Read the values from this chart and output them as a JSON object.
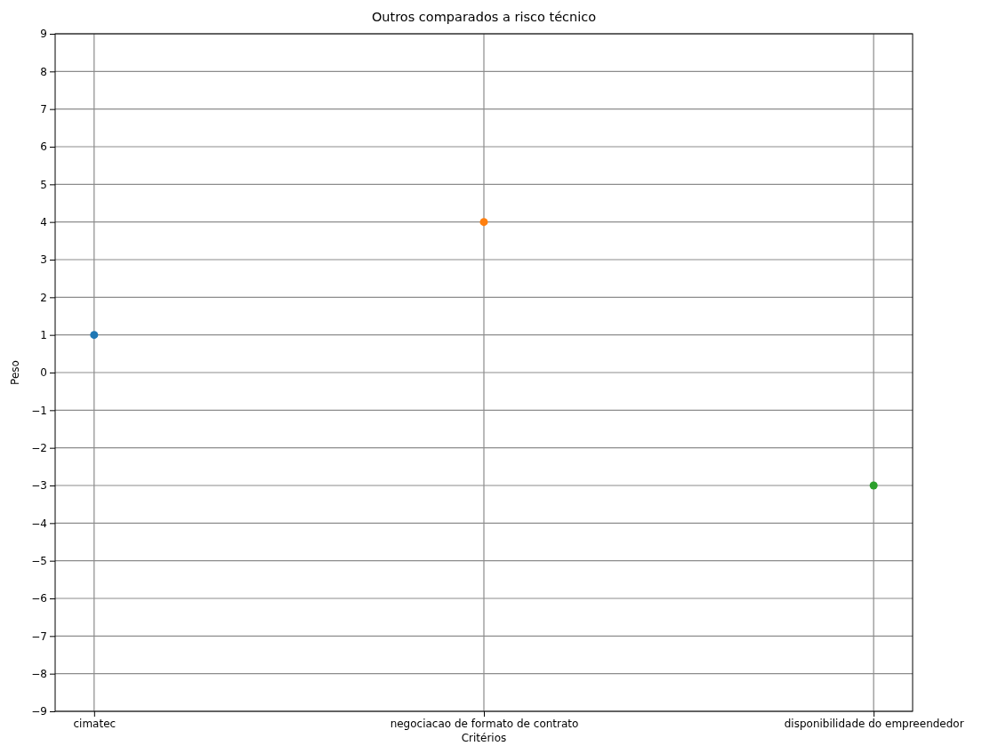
{
  "chart_data": {
    "type": "scatter",
    "title": "Outros comparados a risco técnico",
    "xlabel": "Critérios",
    "ylabel": "Peso",
    "categories": [
      "cimatec",
      "negociacao de formato de contrato",
      "disponibilidade do empreendedor"
    ],
    "values": [
      1,
      4,
      -3
    ],
    "colors": [
      "#1f77b4",
      "#ff7f0e",
      "#2ca02c"
    ],
    "ylim": [
      -9,
      9
    ],
    "yticks": [
      {
        "value": -9,
        "label": "−9"
      },
      {
        "value": -8,
        "label": "−8"
      },
      {
        "value": -7,
        "label": "−7"
      },
      {
        "value": -6,
        "label": "−6"
      },
      {
        "value": -5,
        "label": "−5"
      },
      {
        "value": -4,
        "label": "−4"
      },
      {
        "value": -3,
        "label": "−3"
      },
      {
        "value": -2,
        "label": "−2"
      },
      {
        "value": -1,
        "label": "−1"
      },
      0,
      1,
      2,
      3,
      4,
      5,
      6,
      7,
      8,
      9
    ],
    "grid": true,
    "marker": "circle"
  }
}
